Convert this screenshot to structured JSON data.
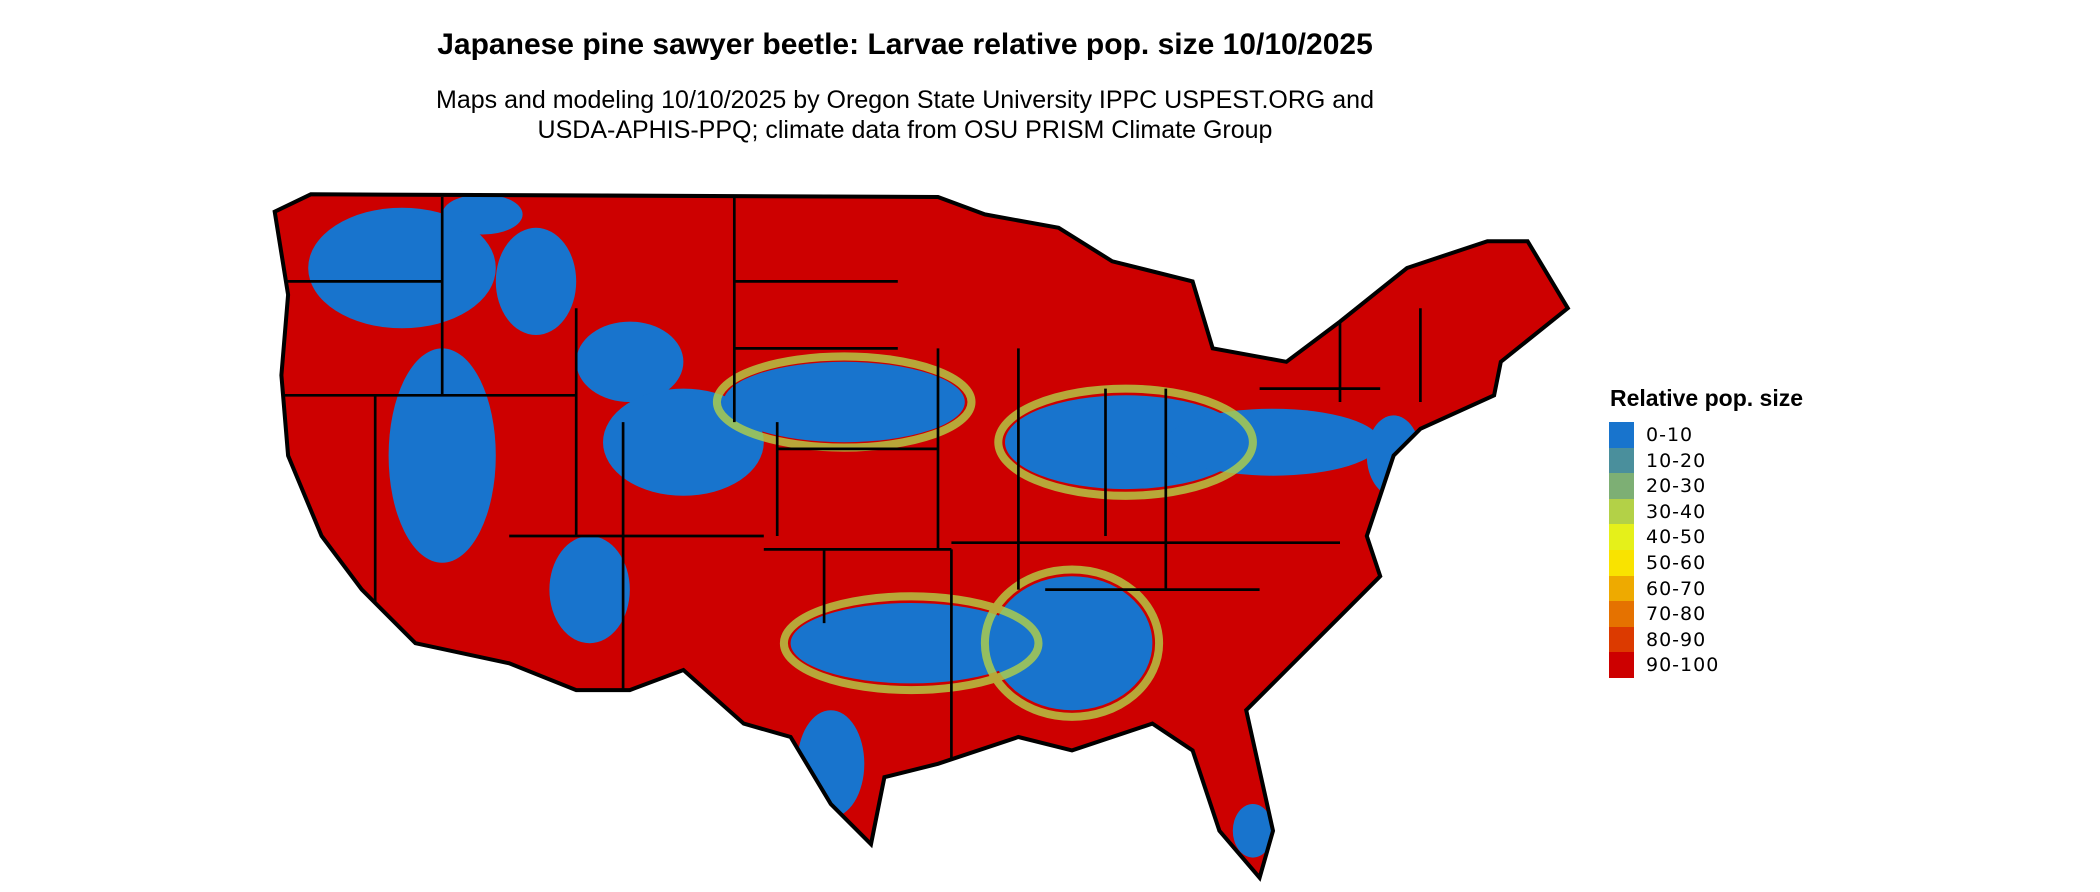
{
  "title": "Japanese pine sawyer beetle: Larvae relative pop. size 10/10/2025",
  "subtitle_lines": [
    "Maps and modeling 10/10/2025 by Oregon State University IPPC USPEST.ORG and",
    "USDA-APHIS-PPQ; climate data from OSU PRISM Climate Group"
  ],
  "legend": {
    "title": "Relative pop. size",
    "items": [
      {
        "label": "0-10",
        "color": "#1874CD"
      },
      {
        "label": "10-20",
        "color": "#4A8F9C"
      },
      {
        "label": "20-30",
        "color": "#7DAF74"
      },
      {
        "label": "30-40",
        "color": "#B3D147"
      },
      {
        "label": "40-50",
        "color": "#E5F01A"
      },
      {
        "label": "50-60",
        "color": "#F9E300"
      },
      {
        "label": "60-70",
        "color": "#EEAA00"
      },
      {
        "label": "70-80",
        "color": "#E57200"
      },
      {
        "label": "80-90",
        "color": "#DC3A00"
      },
      {
        "label": "90-100",
        "color": "#CD0000"
      }
    ]
  },
  "map": {
    "region": "Contiguous United States",
    "dominant_class": "90-100"
  }
}
